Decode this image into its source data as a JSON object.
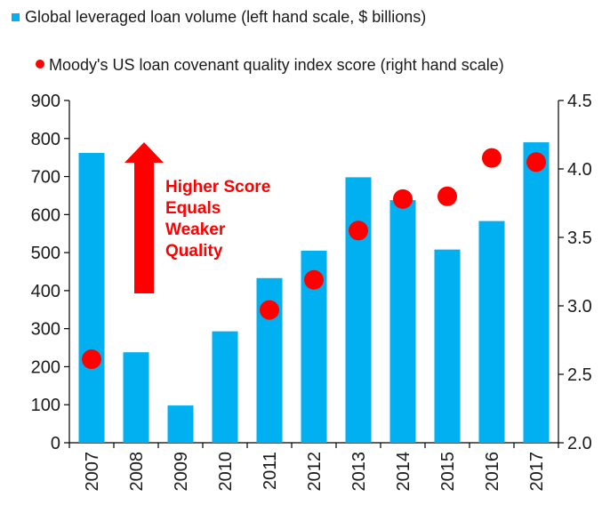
{
  "chart_data": {
    "type": "bar",
    "categories": [
      "2007",
      "2008",
      "2009",
      "2010",
      "2011",
      "2012",
      "2013",
      "2014",
      "2015",
      "2016",
      "2017"
    ],
    "series": [
      {
        "name": "Global leveraged loan volume (left hand scale, $ billions)",
        "type": "bar",
        "axis": "left",
        "color": "#00b0f0",
        "values": [
          762,
          238,
          98,
          293,
          433,
          505,
          698,
          638,
          508,
          583,
          790
        ]
      },
      {
        "name": "Moody's US loan covenant quality index score (right hand scale)",
        "type": "scatter",
        "axis": "right",
        "color": "#ff0000",
        "values": [
          2.61,
          null,
          null,
          null,
          2.97,
          3.19,
          3.55,
          3.78,
          3.8,
          4.08,
          4.05
        ]
      }
    ],
    "y_left": {
      "ylim": [
        0,
        900
      ],
      "ticks": [
        "0",
        "100",
        "200",
        "300",
        "400",
        "500",
        "600",
        "700",
        "800",
        "900"
      ]
    },
    "y_right": {
      "ylim": [
        2.0,
        4.5
      ],
      "ticks": [
        "2.0",
        "2.5",
        "3.0",
        "3.5",
        "4.0",
        "4.5"
      ]
    },
    "annotation": {
      "lines": [
        "Higher Score",
        "Equals",
        "Weaker",
        "Quality"
      ],
      "color": "#ff0000",
      "arrow": "up"
    },
    "legend_placement": "top-left",
    "grid": false
  }
}
